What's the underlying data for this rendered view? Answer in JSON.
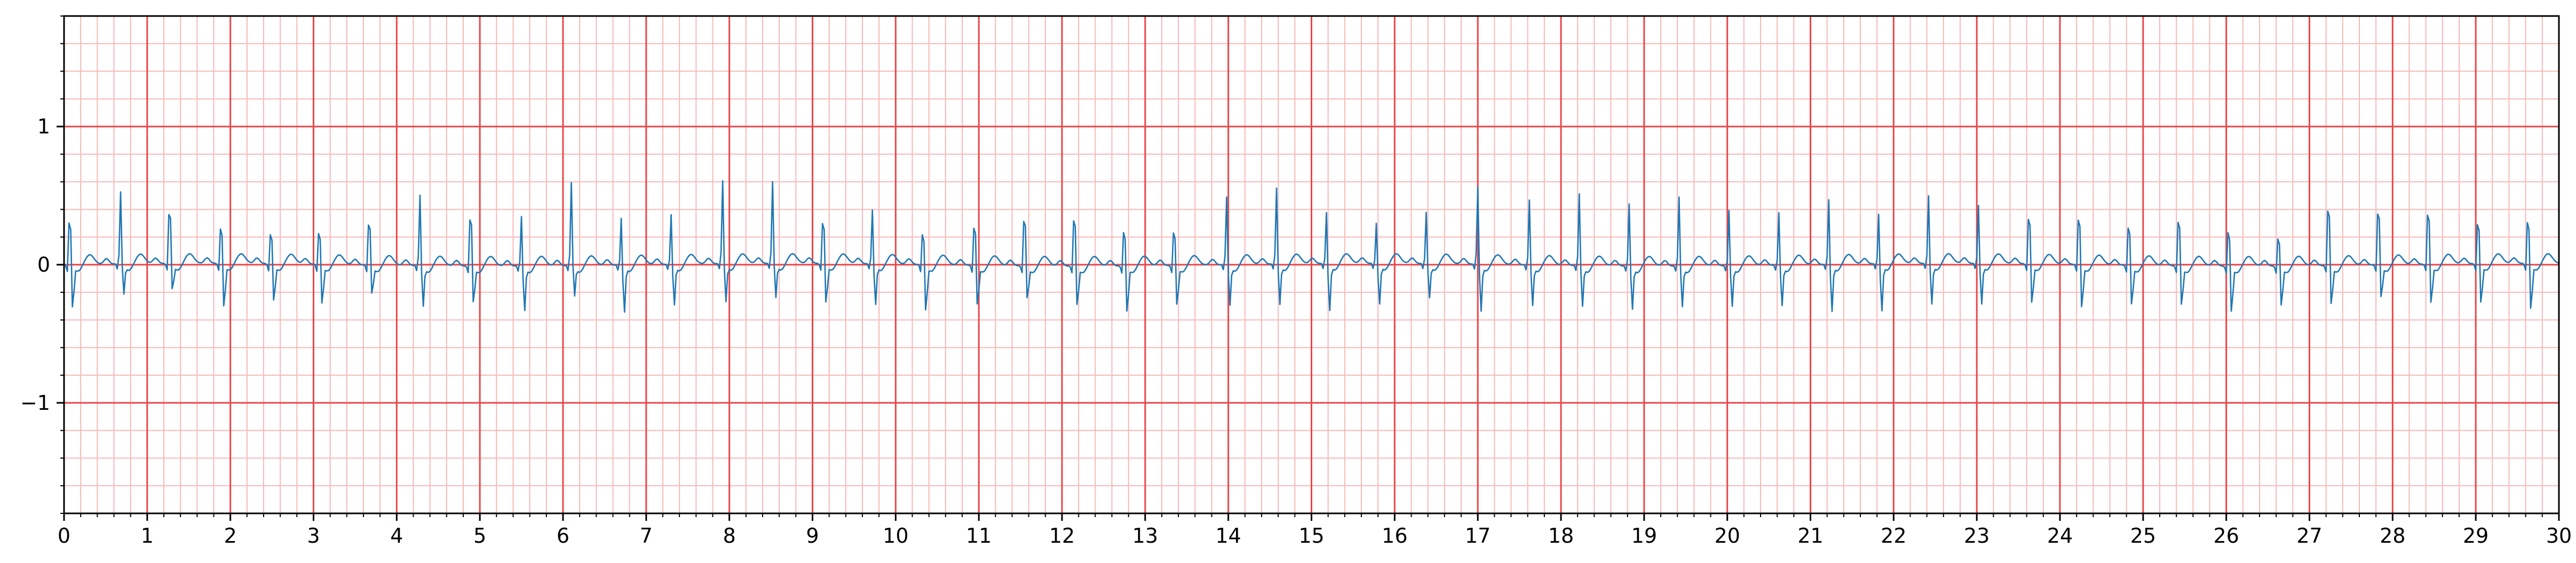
{
  "chart_data": {
    "type": "line",
    "title": "",
    "xlabel": "",
    "ylabel": "",
    "xlim": [
      0,
      30
    ],
    "ylim": [
      -1.8,
      1.8
    ],
    "x_ticks": [
      "0",
      "1",
      "2",
      "3",
      "4",
      "5",
      "6",
      "7",
      "8",
      "9",
      "10",
      "11",
      "12",
      "13",
      "14",
      "15",
      "16",
      "17",
      "18",
      "19",
      "20",
      "21",
      "22",
      "23",
      "24",
      "25",
      "26",
      "27",
      "28",
      "29",
      "30"
    ],
    "y_ticks": [
      {
        "value": 1,
        "label": "1"
      },
      {
        "value": 0,
        "label": "0"
      },
      {
        "value": -1,
        "label": "−1"
      }
    ],
    "grid": {
      "major": {
        "x_step": 1,
        "y_step": 1,
        "color": "#e8474a"
      },
      "minor": {
        "x_step": 0.2,
        "y_step": 0.2,
        "color": "#f7b8b8"
      }
    },
    "series": [
      {
        "color": "#1f77b4",
        "sampling_interval_s": 0.02,
        "beat_times": [
          0.07,
          0.68,
          1.27,
          1.89,
          2.49,
          3.07,
          3.67,
          4.28,
          4.89,
          5.5,
          6.1,
          6.7,
          7.3,
          7.92,
          8.52,
          9.13,
          9.72,
          10.33,
          10.95,
          11.55,
          12.15,
          12.75,
          13.35,
          13.98,
          14.58,
          15.18,
          15.78,
          16.38,
          17.0,
          17.62,
          18.22,
          18.82,
          19.42,
          20.02,
          20.62,
          21.22,
          21.82,
          22.42,
          23.02,
          23.63,
          24.23,
          24.83,
          25.43,
          26.03,
          26.63,
          27.23,
          27.83,
          28.43,
          29.03,
          29.63
        ],
        "r_amplitudes": [
          0.47,
          0.53,
          0.55,
          0.39,
          0.33,
          0.35,
          0.45,
          0.52,
          0.52,
          0.37,
          0.61,
          0.35,
          0.37,
          0.61,
          0.6,
          0.45,
          0.4,
          0.34,
          0.42,
          0.5,
          0.51,
          0.38,
          0.37,
          0.5,
          0.56,
          0.38,
          0.3,
          0.38,
          0.57,
          0.48,
          0.53,
          0.46,
          0.51,
          0.41,
          0.39,
          0.48,
          0.37,
          0.5,
          0.43,
          0.5,
          0.5,
          0.42,
          0.49,
          0.38,
          0.31,
          0.61,
          0.57,
          0.55,
          0.44,
          0.46
        ],
        "s_amplitudes": [
          -0.33,
          -0.22,
          -0.2,
          -0.33,
          -0.28,
          -0.3,
          -0.22,
          -0.3,
          -0.28,
          -0.33,
          -0.22,
          -0.35,
          -0.3,
          -0.28,
          -0.25,
          -0.3,
          -0.3,
          -0.35,
          -0.3,
          -0.25,
          -0.3,
          -0.35,
          -0.3,
          -0.3,
          -0.3,
          -0.35,
          -0.3,
          -0.25,
          -0.35,
          -0.3,
          -0.3,
          -0.32,
          -0.3,
          -0.3,
          -0.3,
          -0.35,
          -0.35,
          -0.3,
          -0.3,
          -0.3,
          -0.33,
          -0.3,
          -0.3,
          -0.35,
          -0.3,
          -0.3,
          -0.25,
          -0.3,
          -0.3,
          -0.35
        ]
      }
    ]
  }
}
